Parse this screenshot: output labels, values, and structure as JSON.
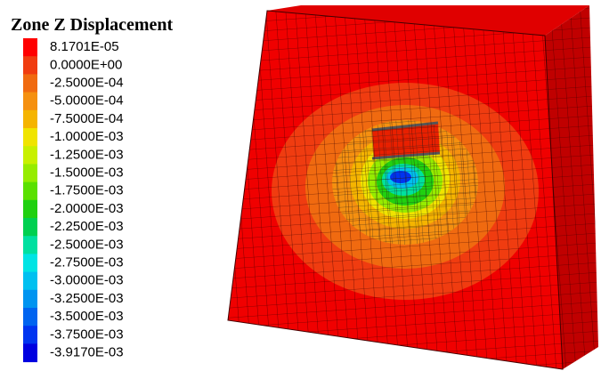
{
  "title": "Zone Z Displacement",
  "legend": [
    {
      "label": "8.1701E-05",
      "color": "#ff0000"
    },
    {
      "label": "0.0000E+00",
      "color": "#f03c10"
    },
    {
      "label": "-2.5000E-04",
      "color": "#f06a10"
    },
    {
      "label": "-5.0000E-04",
      "color": "#f59010"
    },
    {
      "label": "-7.5000E-04",
      "color": "#f5b400"
    },
    {
      "label": "-1.0000E-03",
      "color": "#f0e400"
    },
    {
      "label": "-1.2500E-03",
      "color": "#c8f000"
    },
    {
      "label": "-1.5000E-03",
      "color": "#96ec00"
    },
    {
      "label": "-1.7500E-03",
      "color": "#5ae000"
    },
    {
      "label": "-2.0000E-03",
      "color": "#20d010"
    },
    {
      "label": "-2.2500E-03",
      "color": "#00d050"
    },
    {
      "label": "-2.5000E-03",
      "color": "#00e0a0"
    },
    {
      "label": "-2.7500E-03",
      "color": "#00e4e4"
    },
    {
      "label": "-3.0000E-03",
      "color": "#00c0f0"
    },
    {
      "label": "-3.2500E-03",
      "color": "#0094f0"
    },
    {
      "label": "-3.5000E-03",
      "color": "#0064f0"
    },
    {
      "label": "-3.7500E-03",
      "color": "#0034f0"
    },
    {
      "label": "-3.9170E-03",
      "color": "#0000e0"
    }
  ]
}
